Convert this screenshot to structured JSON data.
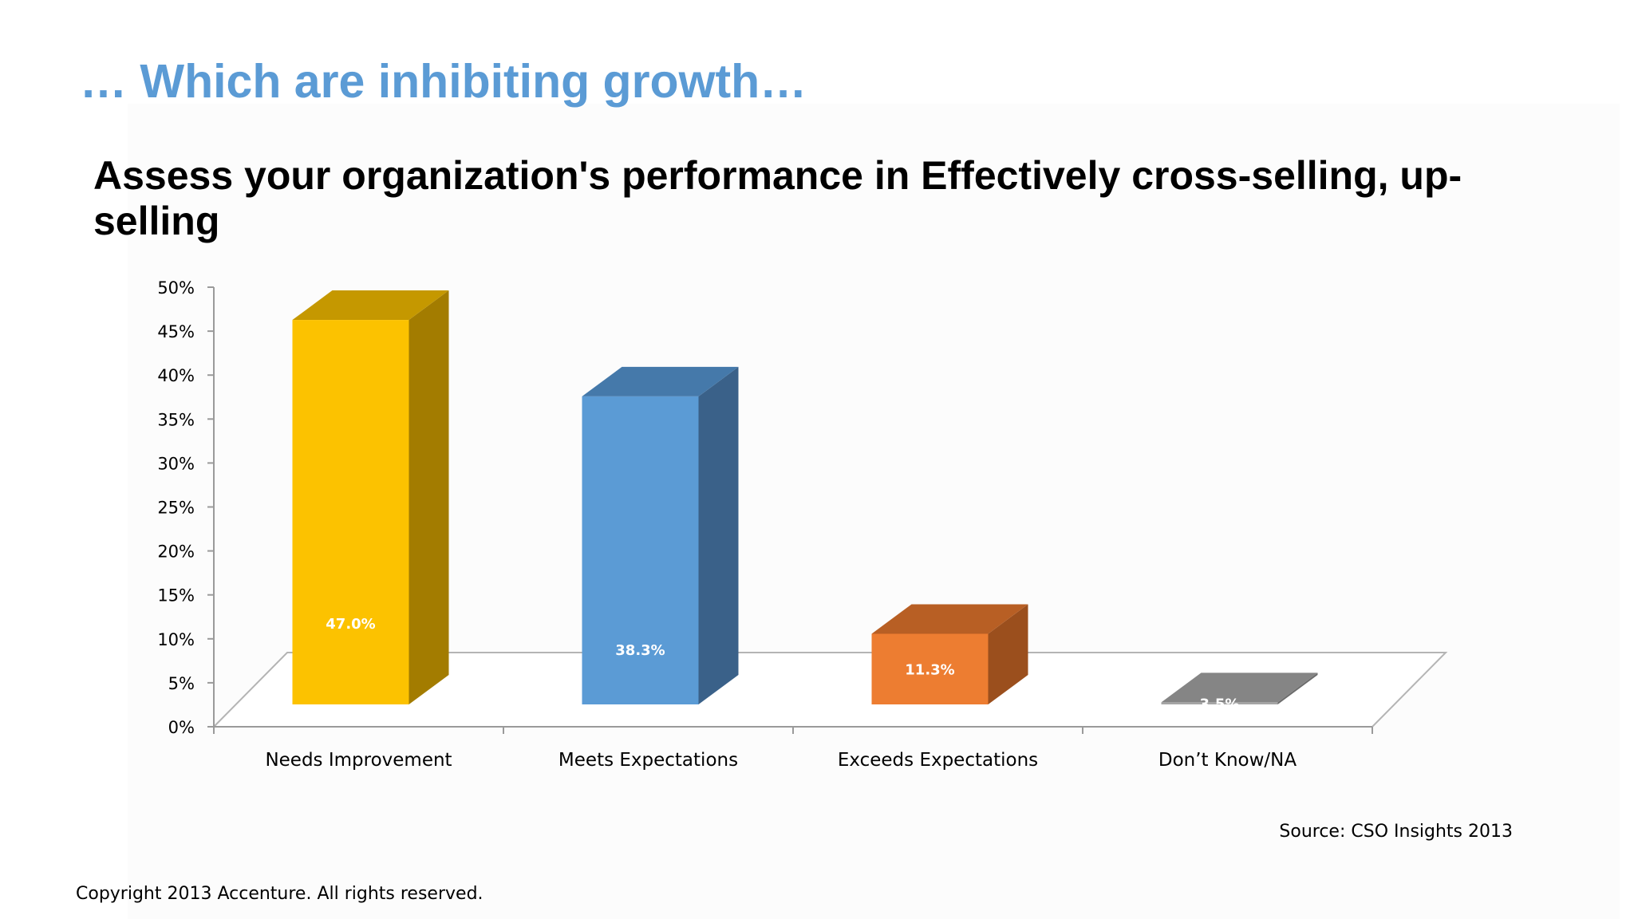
{
  "slide": {
    "heading": "… Which are inhibiting growth…",
    "source": "Source: CSO Insights 2013",
    "copyright": "Copyright 2013 Accenture. All rights reserved."
  },
  "chart_data": {
    "type": "bar",
    "title": "Assess your organization's performance in Effectively cross-selling, up-selling",
    "categories": [
      "Needs Improvement",
      "Meets Expectations",
      "Exceeds Expectations",
      "Don’t Know/NA"
    ],
    "values": [
      47.0,
      38.3,
      11.3,
      3.5
    ],
    "value_labels": [
      "47.0%",
      "38.3%",
      "11.3%",
      "3.5%"
    ],
    "ylim": [
      0,
      50
    ],
    "y_ticks": [
      "0%",
      "5%",
      "10%",
      "15%",
      "20%",
      "25%",
      "30%",
      "35%",
      "40%",
      "45%",
      "50%"
    ],
    "xlabel": "",
    "ylabel": "",
    "grid": false,
    "style": "3d",
    "colors": [
      {
        "front": "#fcc200",
        "top": "#c59800",
        "side": "#a37c00"
      },
      {
        "front": "#5b9bd5",
        "top": "#4579aa",
        "side": "#3a6189"
      },
      {
        "front": "#ed7d31",
        "top": "#b85f24",
        "side": "#9b4f1d"
      },
      {
        "front": "#a5a5a5",
        "top": "#858585",
        "side": "#6c6c6c"
      }
    ]
  }
}
